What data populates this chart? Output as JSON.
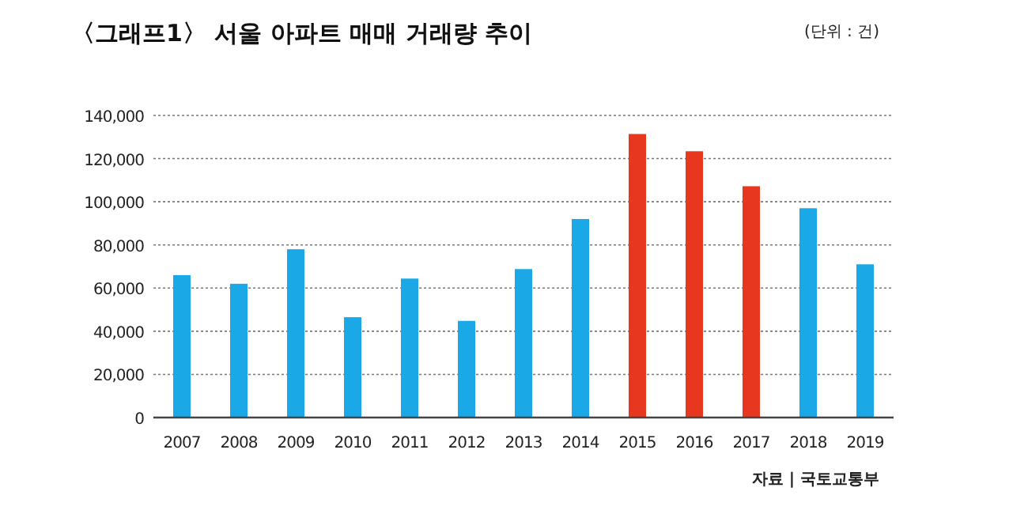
{
  "chart_data": {
    "type": "bar",
    "title": "〈그래프1〉 서울 아파트 매매 거래량 추이",
    "annotations": [
      "(단위 : 건)",
      "자료 | 국토교통부"
    ],
    "categories": [
      "2007",
      "2008",
      "2009",
      "2010",
      "2011",
      "2012",
      "2013",
      "2014",
      "2015",
      "2016",
      "2017",
      "2018",
      "2019"
    ],
    "values": [
      66000,
      62000,
      78000,
      46500,
      64400,
      44800,
      68800,
      92000,
      131400,
      123400,
      107200,
      97000,
      71000
    ],
    "colors": [
      "#1aa9e6",
      "#1aa9e6",
      "#1aa9e6",
      "#1aa9e6",
      "#1aa9e6",
      "#1aa9e6",
      "#1aa9e6",
      "#1aa9e6",
      "#e8371f",
      "#e8371f",
      "#e8371f",
      "#1aa9e6",
      "#1aa9e6"
    ],
    "ylim": [
      0,
      140000
    ],
    "yticks": [
      {
        "value": 0,
        "label": "0"
      },
      {
        "value": 20000,
        "label": "20,000"
      },
      {
        "value": 40000,
        "label": "40,000"
      },
      {
        "value": 60000,
        "label": "60,000"
      },
      {
        "value": 80000,
        "label": "80,000"
      },
      {
        "value": 100000,
        "label": "100,000"
      },
      {
        "value": 120000,
        "label": "120,000"
      },
      {
        "value": 140000,
        "label": "140,000"
      }
    ],
    "grid": "y"
  }
}
